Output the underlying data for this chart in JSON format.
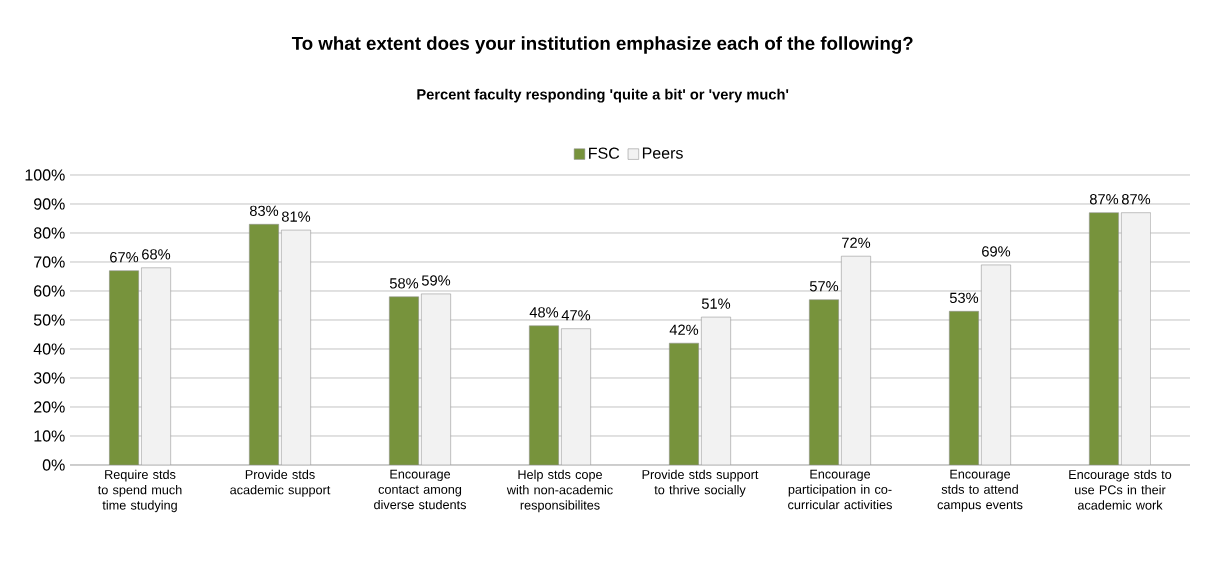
{
  "chart_data": {
    "type": "bar",
    "title": "To what extent does your institution emphasize each of the following?",
    "subtitle": "Percent  faculty responding 'quite a bit' or 'very much'",
    "categories": [
      "Require stds to spend much time studying",
      "Provide stds academic support",
      "Encourage contact among diverse students",
      "Help stds cope with non-academic responsibilites",
      "Provide stds support to thrive socially",
      "Encourage participation in co-curricular activities",
      "Encourage stds to attend campus events",
      "Encourage stds to use PCs in their academic work"
    ],
    "series": [
      {
        "name": "FSC",
        "color": "#77933c",
        "values": [
          67,
          83,
          58,
          48,
          42,
          57,
          53,
          87
        ],
        "value_labels": [
          "67%",
          "83%",
          "58%",
          "48%",
          "42%",
          "57%",
          "53%",
          "87%"
        ]
      },
      {
        "name": "Peers",
        "color": "#f2f2f2",
        "values": [
          68,
          81,
          59,
          47,
          51,
          72,
          69,
          87
        ],
        "value_labels": [
          "68%",
          "81%",
          "59%",
          "47%",
          "51%",
          "72%",
          "69%",
          "87%"
        ]
      }
    ],
    "ylim": [
      0,
      100
    ],
    "yticks": [
      {
        "value": 0,
        "label": "0%"
      },
      {
        "value": 10,
        "label": "10%"
      },
      {
        "value": 20,
        "label": "20%"
      },
      {
        "value": 30,
        "label": "30%"
      },
      {
        "value": 40,
        "label": "40%"
      },
      {
        "value": 50,
        "label": "50%"
      },
      {
        "value": 60,
        "label": "60%"
      },
      {
        "value": 70,
        "label": "70%"
      },
      {
        "value": 80,
        "label": "80%"
      },
      {
        "value": 90,
        "label": "90%"
      },
      {
        "value": 100,
        "label": "100%"
      }
    ],
    "grid": "y",
    "legend": "top"
  }
}
